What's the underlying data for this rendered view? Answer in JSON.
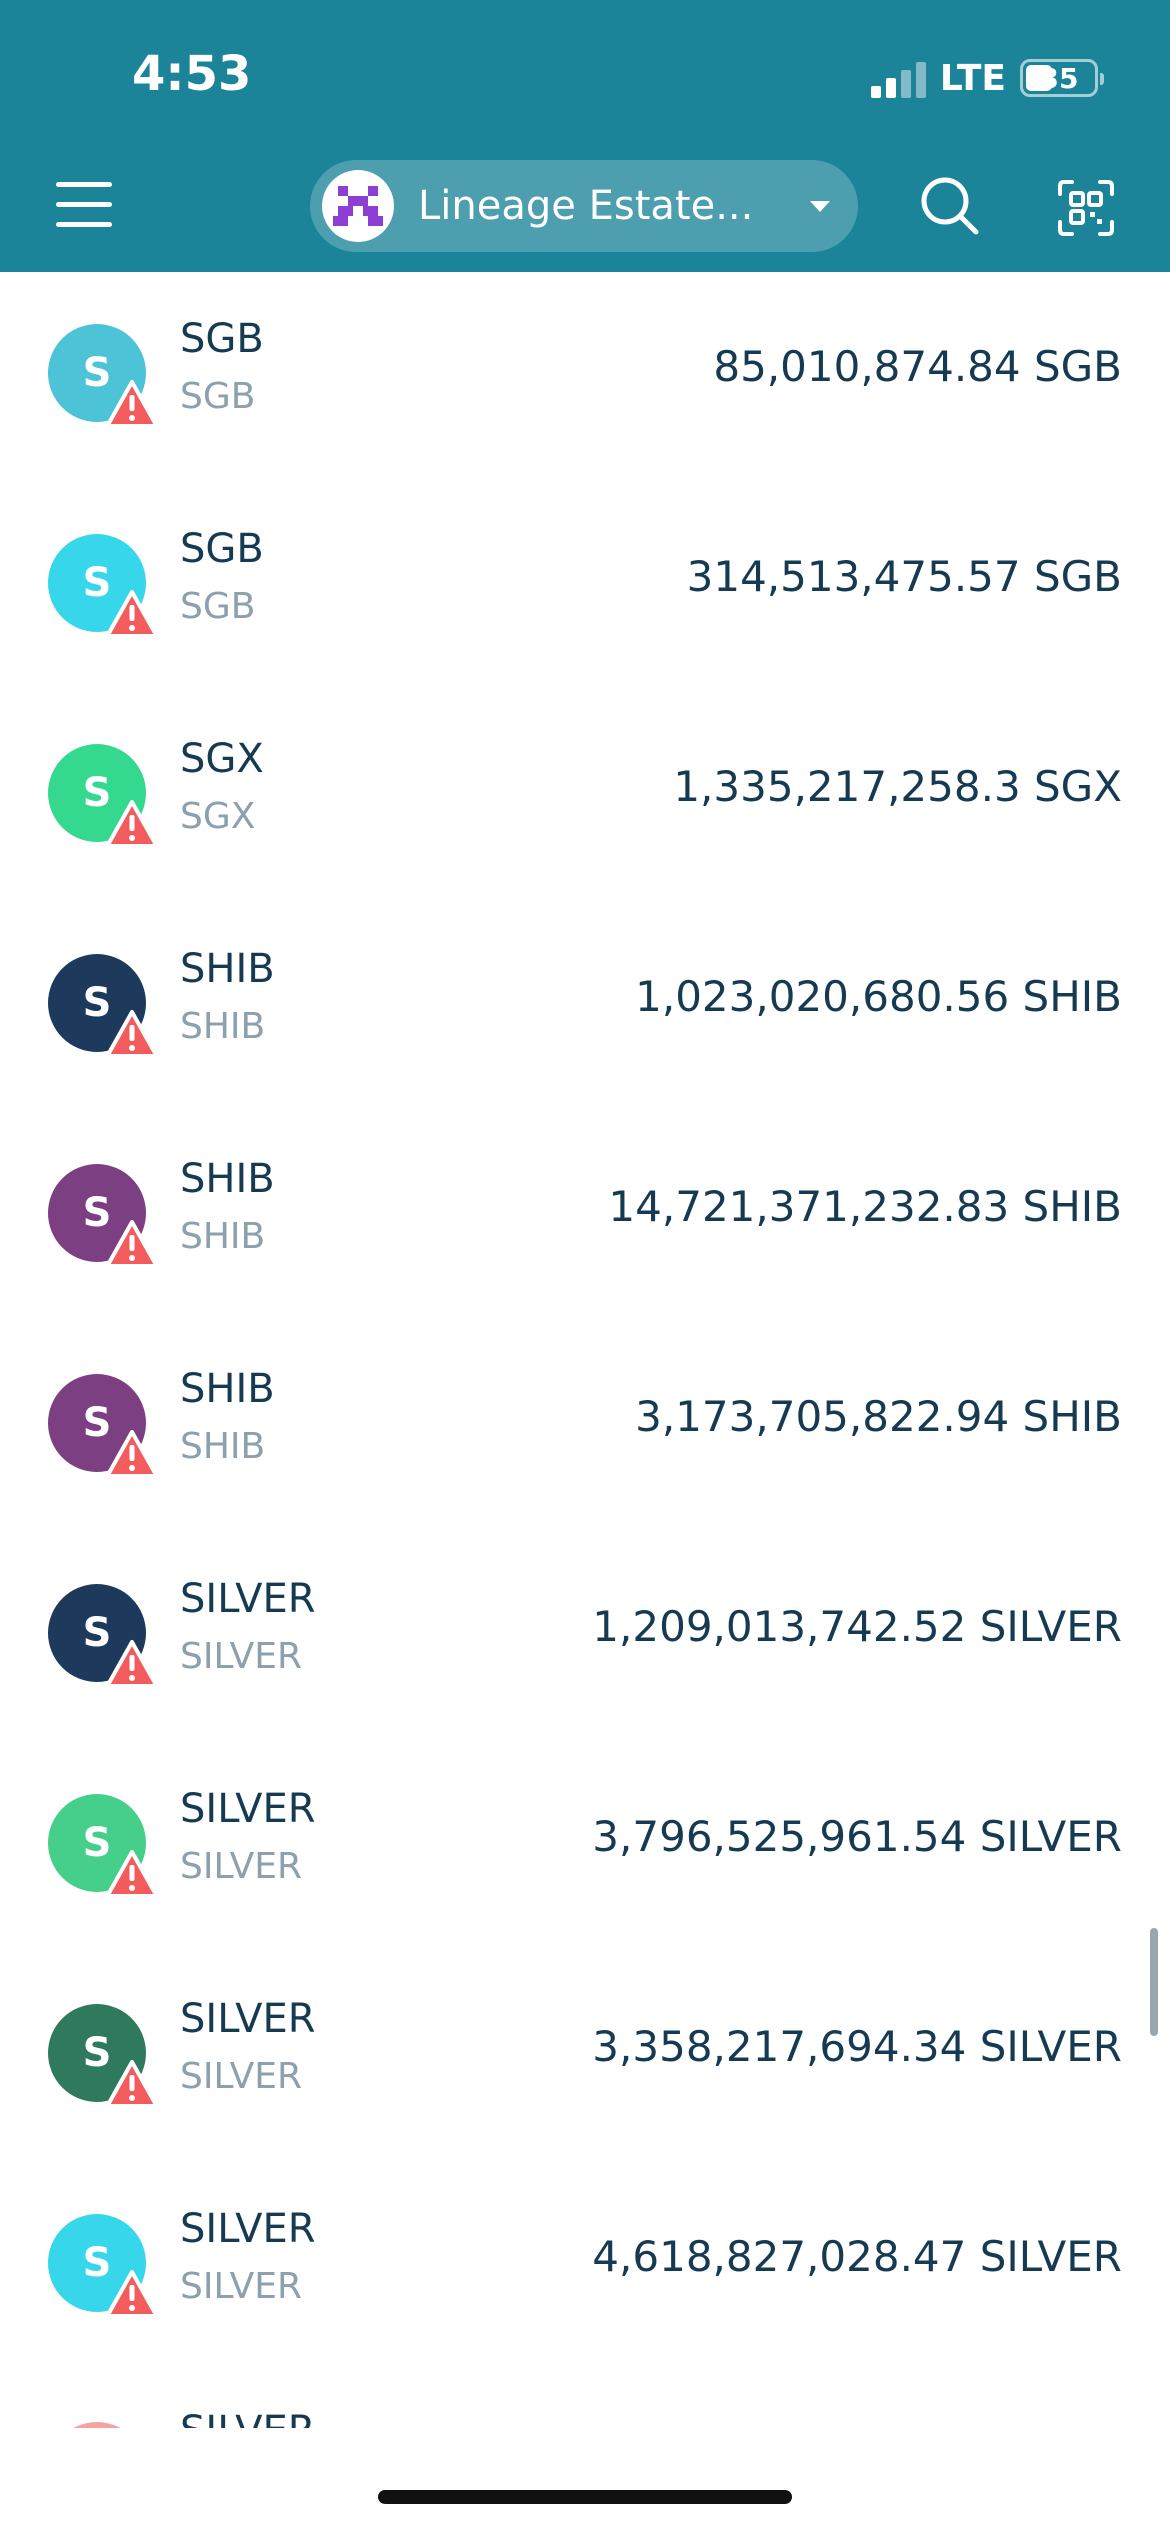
{
  "status_bar": {
    "time": "4:53",
    "network": "LTE",
    "battery": "35"
  },
  "header": {
    "wallet_name": "Lineage Estate..."
  },
  "tokens": [
    {
      "name": "SGB",
      "symbol": "SGB",
      "balance": "85,010,874.84 SGB",
      "letter": "S",
      "color": "#4cc3d6"
    },
    {
      "name": "SGB",
      "symbol": "SGB",
      "balance": "314,513,475.57 SGB",
      "letter": "S",
      "color": "#38d6ea"
    },
    {
      "name": "SGX",
      "symbol": "SGX",
      "balance": "1,335,217,258.3 SGX",
      "letter": "S",
      "color": "#34d98f"
    },
    {
      "name": "SHIB",
      "symbol": "SHIB",
      "balance": "1,023,020,680.56 SHIB",
      "letter": "S",
      "color": "#1d3a5c"
    },
    {
      "name": "SHIB",
      "symbol": "SHIB",
      "balance": "14,721,371,232.83 SHIB",
      "letter": "S",
      "color": "#7b3f82"
    },
    {
      "name": "SHIB",
      "symbol": "SHIB",
      "balance": "3,173,705,822.94 SHIB",
      "letter": "S",
      "color": "#7b3f82"
    },
    {
      "name": "SILVER",
      "symbol": "SILVER",
      "balance": "1,209,013,742.52 SILVER",
      "letter": "S",
      "color": "#1d3a5c"
    },
    {
      "name": "SILVER",
      "symbol": "SILVER",
      "balance": "3,796,525,961.54 SILVER",
      "letter": "S",
      "color": "#46cf8b"
    },
    {
      "name": "SILVER",
      "symbol": "SILVER",
      "balance": "3,358,217,694.34 SILVER",
      "letter": "S",
      "color": "#2f7a5c"
    },
    {
      "name": "SILVER",
      "symbol": "SILVER",
      "balance": "4,618,827,028.47 SILVER",
      "letter": "S",
      "color": "#38d6ea"
    }
  ],
  "partial_item": {
    "name": "SILVER"
  },
  "icons": {
    "menu": "hamburger-menu-icon",
    "search": "search-icon",
    "scan": "qr-scan-icon",
    "warning": "warning-icon"
  }
}
